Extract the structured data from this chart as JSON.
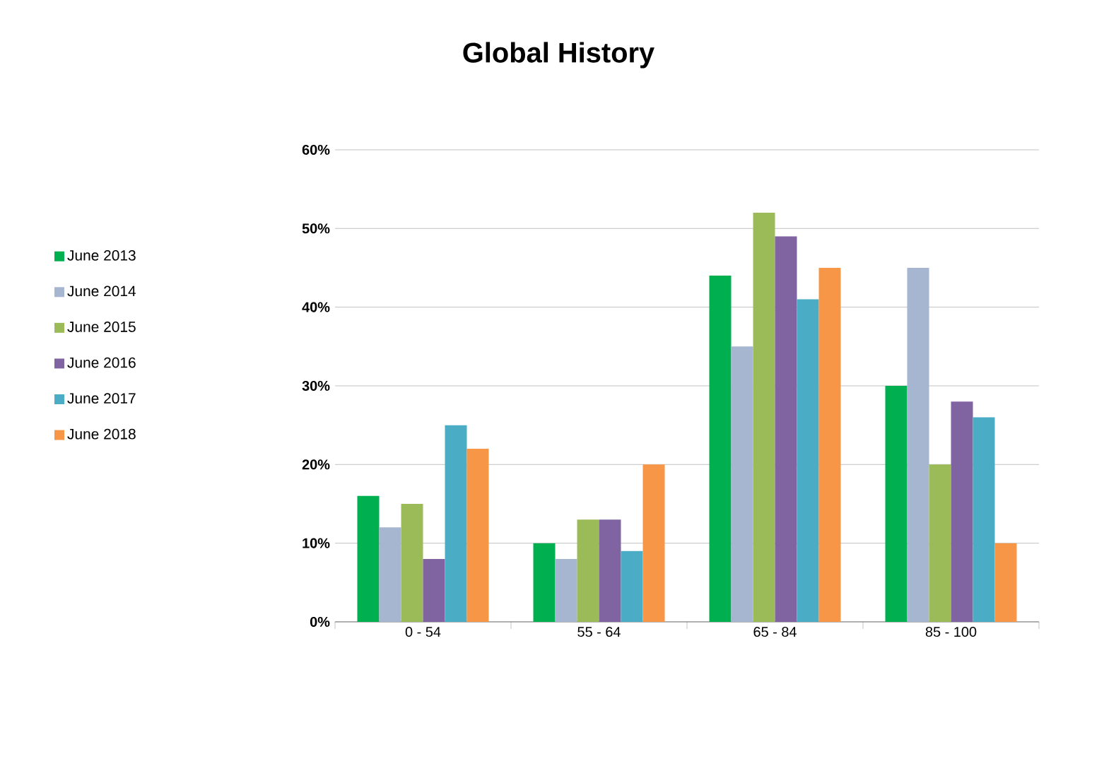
{
  "chart_data": {
    "type": "bar",
    "title": "Global History",
    "categories": [
      "0 - 54",
      "55 - 64",
      "65 - 84",
      "85 - 100"
    ],
    "series": [
      {
        "name": "June 2013",
        "color": "#00b050",
        "values": [
          16,
          10,
          44,
          30
        ]
      },
      {
        "name": "June 2014",
        "color": "#a6b6d0",
        "values": [
          12,
          8,
          35,
          45
        ]
      },
      {
        "name": "June 2015",
        "color": "#9bbb59",
        "values": [
          15,
          13,
          52,
          20
        ]
      },
      {
        "name": "June 2016",
        "color": "#8064a2",
        "values": [
          8,
          13,
          49,
          28
        ]
      },
      {
        "name": "June 2017",
        "color": "#4bacc6",
        "values": [
          25,
          9,
          41,
          26
        ]
      },
      {
        "name": "June 2018",
        "color": "#f79646",
        "values": [
          22,
          20,
          45,
          10
        ]
      }
    ],
    "ylim": [
      0,
      60
    ],
    "yticks": [
      {
        "value": 0,
        "label": "0%"
      },
      {
        "value": 10,
        "label": "10%"
      },
      {
        "value": 20,
        "label": "20%"
      },
      {
        "value": 30,
        "label": "30%"
      },
      {
        "value": 40,
        "label": "40%"
      },
      {
        "value": 50,
        "label": "50%"
      },
      {
        "value": 60,
        "label": "60%"
      }
    ],
    "grid": "y",
    "legend": "left"
  }
}
